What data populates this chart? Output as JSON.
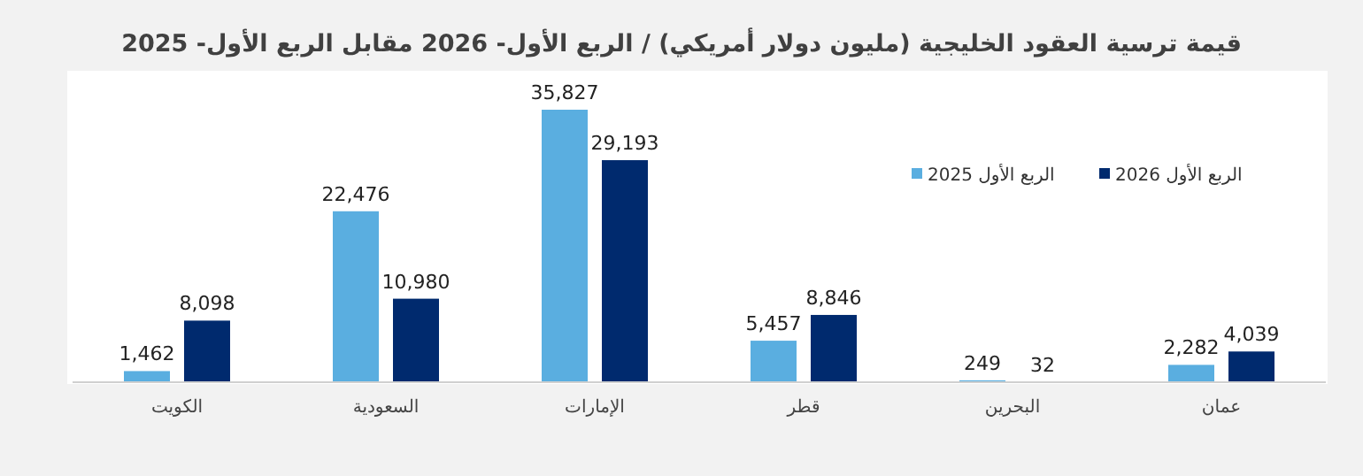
{
  "chart_data": {
    "type": "bar",
    "title": "قيمة ترسية العقود الخليجية (مليون دولار أمريكي) / الربع الأول- 2026 مقابل الربع الأول- 2025",
    "categories": [
      "الكويت",
      "السعودية",
      "الإمارات",
      "قطر",
      "البحرين",
      "عمان"
    ],
    "series": [
      {
        "name": "الربع الأول 2025",
        "color": "#5aaee0",
        "values": [
          1462,
          22476,
          35827,
          5457,
          249,
          2282
        ],
        "value_labels": [
          "1,462",
          "22,476",
          "35,827",
          "5,457",
          "249",
          "2,282"
        ]
      },
      {
        "name": "الربع الأول 2026",
        "color": "#002a6e",
        "values": [
          8098,
          10980,
          29193,
          8846,
          32,
          4039
        ],
        "value_labels": [
          "8,098",
          "10,980",
          "29,193",
          "8,846",
          "32",
          "4,039"
        ]
      }
    ],
    "legend": "top right"
  }
}
